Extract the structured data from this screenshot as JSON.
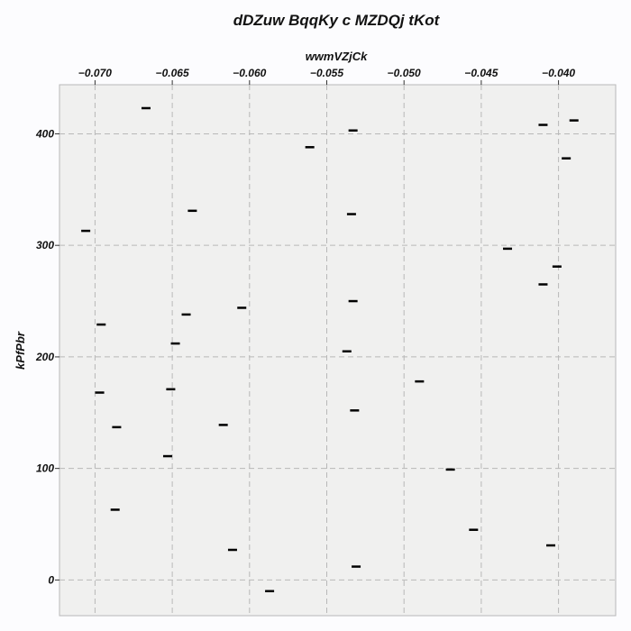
{
  "chart_data": {
    "type": "scatter",
    "title": "dDZuw BqqKy c MZDQj tKot",
    "xlabel": "wwmVZjCk",
    "ylabel": "kPfPbr",
    "xlim": [
      -0.0723,
      -0.0363
    ],
    "ylim": [
      -32,
      444
    ],
    "x_axis_position": "top",
    "grid": true,
    "grid_style": "dashed",
    "marker": "horizontal dash",
    "colors": {
      "background": "#fcfcfe",
      "plot_background": "#f0f0ef",
      "marker": "#000000",
      "grid": "#b8b8b8"
    },
    "x_ticks": [
      {
        "value": -0.07,
        "label": "−0.070"
      },
      {
        "value": -0.065,
        "label": "−0.065"
      },
      {
        "value": -0.06,
        "label": "−0.060"
      },
      {
        "value": -0.055,
        "label": "−0.055"
      },
      {
        "value": -0.05,
        "label": "−0.050"
      },
      {
        "value": -0.045,
        "label": "−0.045"
      },
      {
        "value": -0.04,
        "label": "−0.040"
      }
    ],
    "y_ticks": [
      {
        "value": 0,
        "label": "0"
      },
      {
        "value": 100,
        "label": "100"
      },
      {
        "value": 200,
        "label": "200"
      },
      {
        "value": 300,
        "label": "300"
      },
      {
        "value": 400,
        "label": "400"
      }
    ],
    "points": [
      {
        "x": -0.0667,
        "y": 423
      },
      {
        "x": -0.0533,
        "y": 403
      },
      {
        "x": -0.041,
        "y": 408
      },
      {
        "x": -0.039,
        "y": 412
      },
      {
        "x": -0.0561,
        "y": 388
      },
      {
        "x": -0.0395,
        "y": 378
      },
      {
        "x": -0.0637,
        "y": 331
      },
      {
        "x": -0.0534,
        "y": 328
      },
      {
        "x": -0.0706,
        "y": 313
      },
      {
        "x": -0.0433,
        "y": 297
      },
      {
        "x": -0.0401,
        "y": 281
      },
      {
        "x": -0.041,
        "y": 265
      },
      {
        "x": -0.0533,
        "y": 250
      },
      {
        "x": -0.0605,
        "y": 244
      },
      {
        "x": -0.0641,
        "y": 238
      },
      {
        "x": -0.0696,
        "y": 229
      },
      {
        "x": -0.0648,
        "y": 212
      },
      {
        "x": -0.0537,
        "y": 205
      },
      {
        "x": -0.049,
        "y": 178
      },
      {
        "x": -0.0697,
        "y": 168
      },
      {
        "x": -0.0651,
        "y": 171
      },
      {
        "x": -0.0532,
        "y": 152
      },
      {
        "x": -0.0686,
        "y": 137
      },
      {
        "x": -0.0617,
        "y": 139
      },
      {
        "x": -0.0653,
        "y": 111
      },
      {
        "x": -0.047,
        "y": 99
      },
      {
        "x": -0.0687,
        "y": 63
      },
      {
        "x": -0.0455,
        "y": 45
      },
      {
        "x": -0.0405,
        "y": 31
      },
      {
        "x": -0.0611,
        "y": 27
      },
      {
        "x": -0.0531,
        "y": 12
      },
      {
        "x": -0.0587,
        "y": -10
      }
    ]
  }
}
